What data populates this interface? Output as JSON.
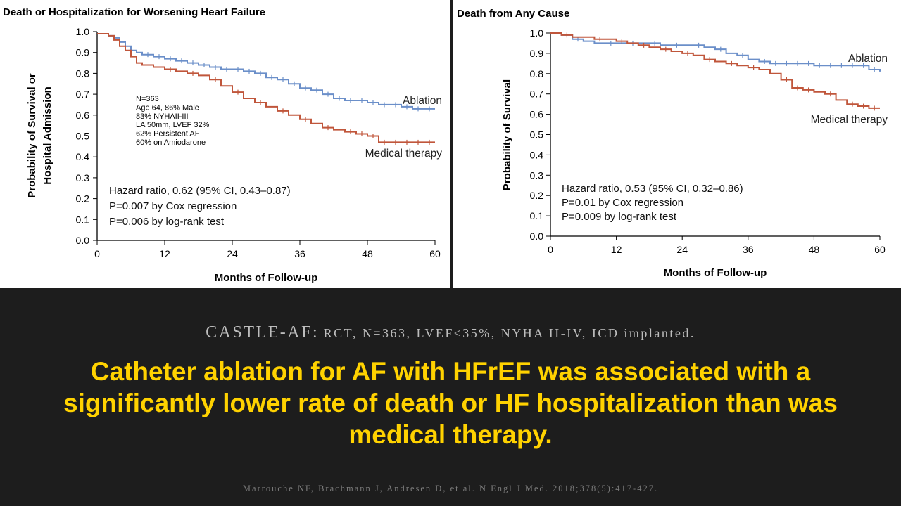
{
  "chart_data": [
    {
      "type": "line",
      "title": "Death or Hospitalization for Worsening Heart Failure",
      "xlabel": "Months of Follow-up",
      "ylabel_lines": [
        "Probability of Survival or",
        "Hospital Admission"
      ],
      "xlim": [
        0,
        60
      ],
      "ylim": [
        0,
        1.0
      ],
      "xticks": [
        0,
        12,
        24,
        36,
        48,
        60
      ],
      "yticks": [
        0.0,
        0.1,
        0.2,
        0.3,
        0.4,
        0.5,
        0.6,
        0.7,
        0.8,
        0.9,
        1.0
      ],
      "ytick_labels": [
        "0.0",
        "0.1",
        "0.2",
        "0.3",
        "0.4",
        "0.5",
        "0.6",
        "0.7",
        "0.8",
        "0.9",
        "1.0"
      ],
      "xtick_labels": [
        "0",
        "12",
        "24",
        "36",
        "48",
        "60"
      ],
      "grid": false,
      "series": [
        {
          "name": "Ablation",
          "color": "#6b8fc9",
          "x": [
            0,
            1,
            2,
            3,
            4,
            5,
            6,
            7,
            8,
            9,
            10,
            12,
            14,
            16,
            18,
            20,
            22,
            24,
            26,
            28,
            30,
            32,
            34,
            36,
            38,
            40,
            42,
            44,
            46,
            48,
            50,
            52,
            54,
            56,
            58,
            60
          ],
          "y": [
            0.99,
            0.99,
            0.98,
            0.97,
            0.95,
            0.93,
            0.91,
            0.9,
            0.89,
            0.89,
            0.88,
            0.87,
            0.86,
            0.85,
            0.84,
            0.83,
            0.82,
            0.82,
            0.81,
            0.8,
            0.78,
            0.77,
            0.75,
            0.73,
            0.72,
            0.7,
            0.68,
            0.67,
            0.67,
            0.66,
            0.65,
            0.65,
            0.64,
            0.63,
            0.63,
            0.63
          ],
          "censor_x": [
            4,
            9,
            11,
            13,
            15,
            17,
            19,
            21,
            23,
            25,
            27,
            29,
            31,
            33,
            35,
            37,
            39,
            41,
            43,
            45,
            47,
            49,
            51,
            53,
            55,
            57,
            59
          ]
        },
        {
          "name": "Medical therapy",
          "color": "#c0563b",
          "x": [
            0,
            1,
            2,
            3,
            4,
            5,
            6,
            7,
            8,
            10,
            12,
            14,
            16,
            18,
            20,
            22,
            24,
            26,
            28,
            30,
            32,
            34,
            36,
            38,
            40,
            42,
            44,
            46,
            48,
            50,
            52,
            54,
            56,
            58,
            60
          ],
          "y": [
            0.99,
            0.99,
            0.98,
            0.96,
            0.93,
            0.91,
            0.88,
            0.85,
            0.84,
            0.83,
            0.82,
            0.81,
            0.8,
            0.79,
            0.77,
            0.74,
            0.71,
            0.68,
            0.66,
            0.64,
            0.62,
            0.6,
            0.58,
            0.56,
            0.54,
            0.53,
            0.52,
            0.51,
            0.5,
            0.47,
            0.47,
            0.47,
            0.47,
            0.47,
            0.47
          ],
          "censor_x": [
            13,
            17,
            21,
            25,
            29,
            33,
            37,
            41,
            45,
            47,
            49,
            51,
            53,
            55,
            57,
            59
          ]
        }
      ],
      "series_labels": [
        "Ablation",
        "Medical therapy"
      ],
      "annotation_lines": [
        "N=363",
        "Age 64, 86% Male",
        "83% NYHAII-III",
        "LA 50mm, LVEF 32%",
        "62% Persistent AF",
        "60% on Amiodarone"
      ],
      "stats_lines": [
        "Hazard ratio, 0.62 (95% CI, 0.43–0.87)",
        "P=0.007 by Cox regression",
        "P=0.006 by log-rank test"
      ]
    },
    {
      "type": "line",
      "title": "Death from Any Cause",
      "xlabel": "Months of Follow-up",
      "ylabel_lines": [
        "Probability of Survival"
      ],
      "xlim": [
        0,
        60
      ],
      "ylim": [
        0,
        1.0
      ],
      "xticks": [
        0,
        12,
        24,
        36,
        48,
        60
      ],
      "yticks": [
        0.0,
        0.1,
        0.2,
        0.3,
        0.4,
        0.5,
        0.6,
        0.7,
        0.8,
        0.9,
        1.0
      ],
      "ytick_labels": [
        "0.0",
        "0.1",
        "0.2",
        "0.3",
        "0.4",
        "0.5",
        "0.6",
        "0.7",
        "0.8",
        "0.9",
        "1.0"
      ],
      "xtick_labels": [
        "0",
        "12",
        "24",
        "36",
        "48",
        "60"
      ],
      "grid": false,
      "series": [
        {
          "name": "Ablation",
          "color": "#6b8fc9",
          "x": [
            0,
            2,
            4,
            6,
            8,
            10,
            12,
            16,
            20,
            24,
            28,
            30,
            32,
            34,
            36,
            38,
            40,
            44,
            48,
            52,
            56,
            58,
            60
          ],
          "y": [
            1.0,
            0.99,
            0.97,
            0.96,
            0.95,
            0.95,
            0.95,
            0.95,
            0.94,
            0.94,
            0.93,
            0.92,
            0.9,
            0.89,
            0.87,
            0.86,
            0.85,
            0.85,
            0.84,
            0.84,
            0.84,
            0.82,
            0.81
          ],
          "censor_x": [
            5,
            11,
            15,
            19,
            23,
            27,
            31,
            35,
            39,
            41,
            43,
            45,
            47,
            49,
            51,
            53,
            55,
            57,
            59
          ]
        },
        {
          "name": "Medical therapy",
          "color": "#c0563b",
          "x": [
            0,
            2,
            4,
            6,
            8,
            10,
            12,
            14,
            16,
            18,
            20,
            22,
            24,
            26,
            28,
            30,
            32,
            34,
            36,
            38,
            40,
            42,
            44,
            46,
            48,
            50,
            52,
            54,
            56,
            58,
            60
          ],
          "y": [
            1.0,
            0.99,
            0.98,
            0.98,
            0.97,
            0.97,
            0.96,
            0.95,
            0.94,
            0.93,
            0.92,
            0.91,
            0.9,
            0.89,
            0.87,
            0.86,
            0.85,
            0.84,
            0.83,
            0.82,
            0.8,
            0.77,
            0.73,
            0.72,
            0.71,
            0.7,
            0.67,
            0.65,
            0.64,
            0.63,
            0.63
          ],
          "censor_x": [
            3,
            9,
            13,
            17,
            21,
            25,
            29,
            33,
            37,
            43,
            45,
            47,
            51,
            55,
            57,
            59
          ]
        }
      ],
      "series_labels": [
        "Ablation",
        "Medical therapy"
      ],
      "annotation_lines": [],
      "stats_lines": [
        "Hazard ratio, 0.53 (95% CI, 0.32–0.86)",
        "P=0.01 by Cox regression",
        "P=0.009 by log-rank test"
      ]
    }
  ],
  "banner": {
    "study_name": "CASTLE-AF:",
    "study_detail": "RCT, N=363, LVEF≤35%, NYHA II-IV, ICD implanted.",
    "headline": "Catheter ablation for AF with HFrEF was associated with a significantly lower rate of death or HF hospitalization than was medical therapy.",
    "citation": "Marrouche NF, Brachmann J, Andresen D, et al. N Engl J Med. 2018;378(5):417-427."
  }
}
